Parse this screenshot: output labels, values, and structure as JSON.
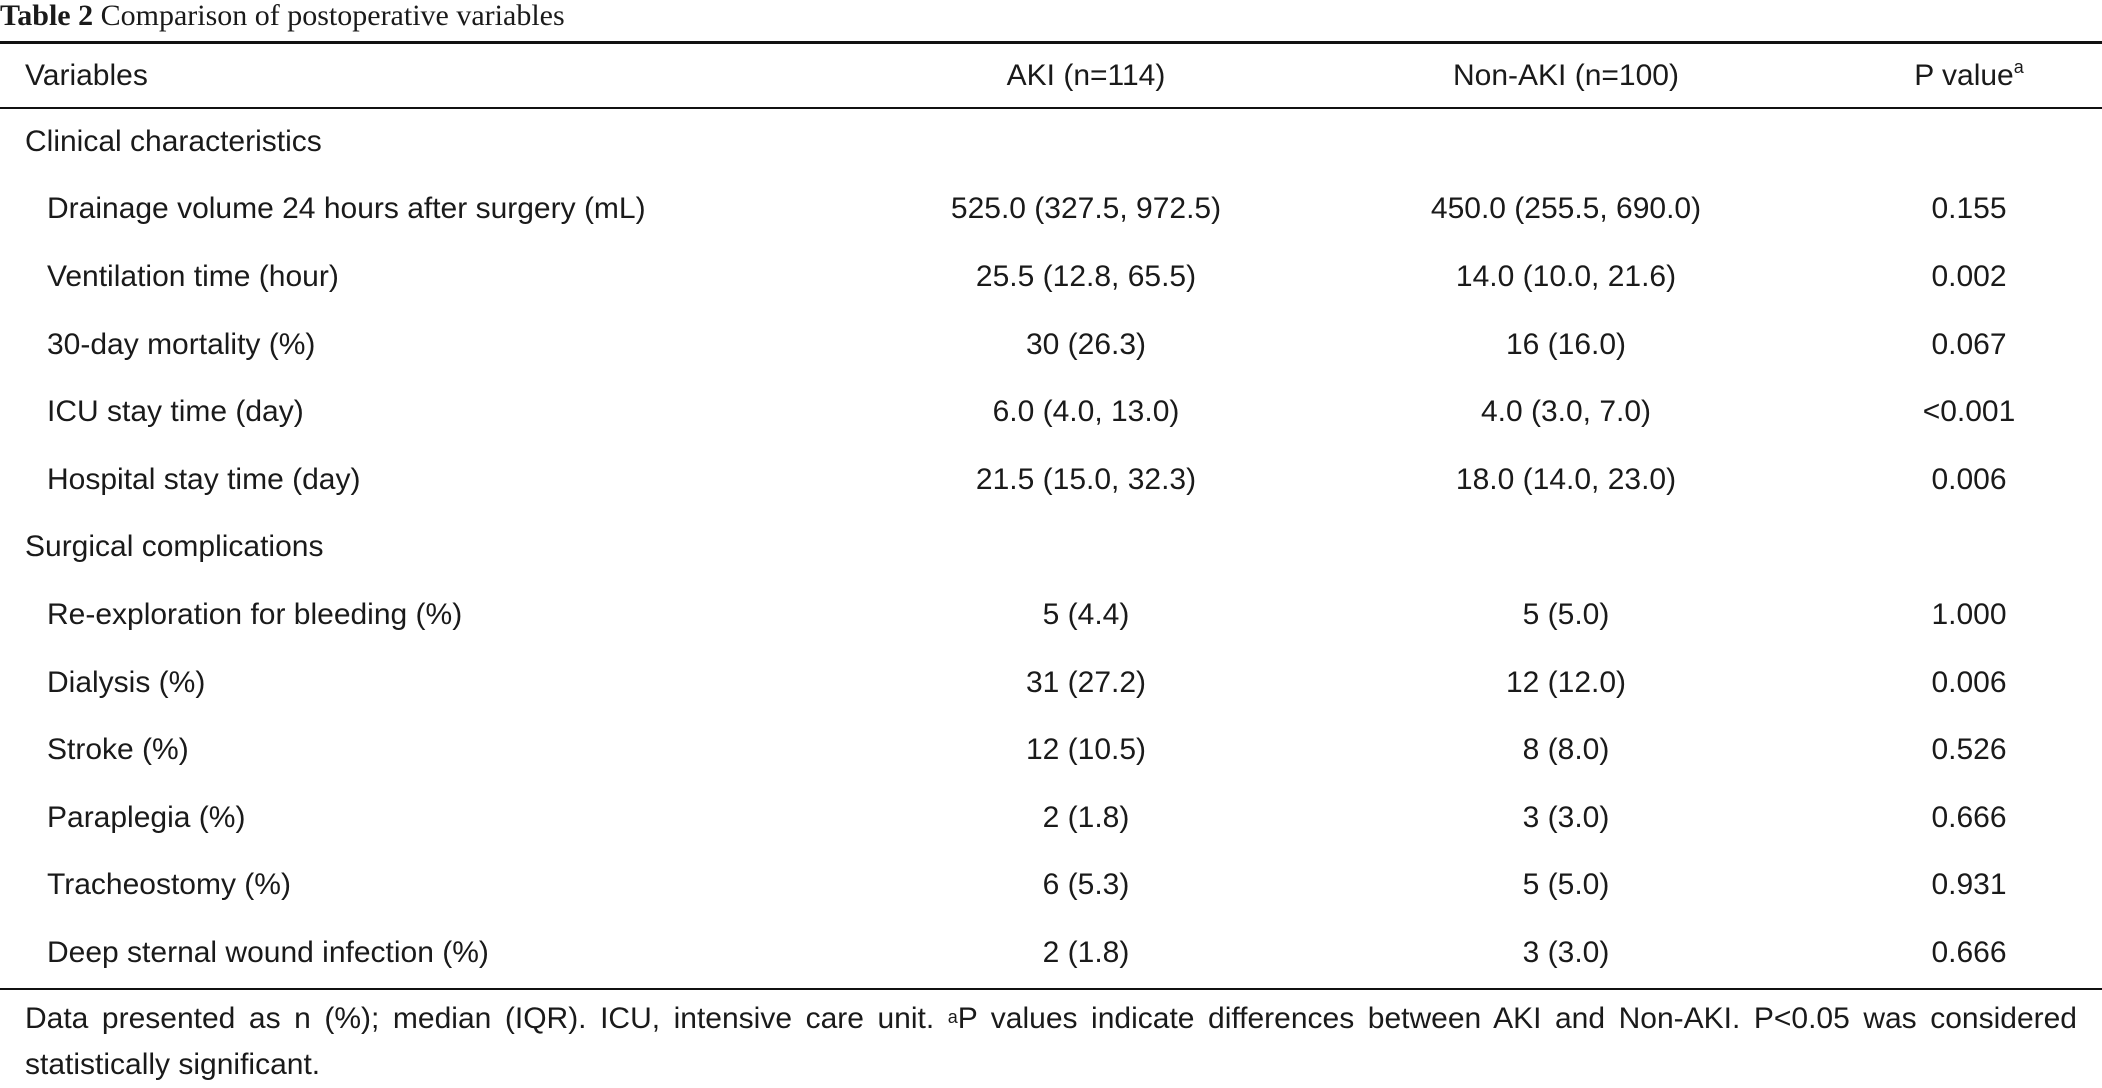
{
  "caption": {
    "label": "Table 2",
    "title": "Comparison of postoperative variables"
  },
  "table": {
    "headers": {
      "variables": "Variables",
      "aki": "AKI (n=114)",
      "non_aki": "Non-AKI (n=100)",
      "p_value": "P value",
      "p_value_superscript": "a"
    },
    "sections": [
      {
        "title": "Clinical characteristics",
        "rows": [
          {
            "label": "Drainage volume 24 hours after surgery (mL)",
            "aki": "525.0 (327.5, 972.5)",
            "non_aki": "450.0 (255.5, 690.0)",
            "p": "0.155"
          },
          {
            "label": "Ventilation time (hour)",
            "aki": "25.5 (12.8, 65.5)",
            "non_aki": "14.0 (10.0, 21.6)",
            "p": "0.002"
          },
          {
            "label": "30-day mortality (%)",
            "aki": "30 (26.3)",
            "non_aki": "16 (16.0)",
            "p": "0.067"
          },
          {
            "label": "ICU stay time (day)",
            "aki": "6.0 (4.0, 13.0)",
            "non_aki": "4.0 (3.0, 7.0)",
            "p": "<0.001"
          },
          {
            "label": "Hospital stay time (day)",
            "aki": "21.5 (15.0, 32.3)",
            "non_aki": "18.0 (14.0, 23.0)",
            "p": "0.006"
          }
        ]
      },
      {
        "title": "Surgical complications",
        "rows": [
          {
            "label": "Re-exploration for bleeding (%)",
            "aki": "5 (4.4)",
            "non_aki": "5 (5.0)",
            "p": "1.000"
          },
          {
            "label": "Dialysis (%)",
            "aki": "31 (27.2)",
            "non_aki": "12 (12.0)",
            "p": "0.006"
          },
          {
            "label": "Stroke (%)",
            "aki": "12 (10.5)",
            "non_aki": "8 (8.0)",
            "p": "0.526"
          },
          {
            "label": "Paraplegia (%)",
            "aki": "2 (1.8)",
            "non_aki": "3 (3.0)",
            "p": "0.666"
          },
          {
            "label": "Tracheostomy (%)",
            "aki": "6 (5.3)",
            "non_aki": "5 (5.0)",
            "p": "0.931"
          },
          {
            "label": "Deep sternal wound infection (%)",
            "aki": "2 (1.8)",
            "non_aki": "3 (3.0)",
            "p": "0.666"
          }
        ]
      }
    ]
  },
  "footnote": {
    "part1": "Data presented as n (%); median (IQR). ICU, intensive care unit. ",
    "superscript": "a",
    "part2": "P values indicate differences between AKI and Non-AKI. P<0.05 was considered statistically significant."
  }
}
